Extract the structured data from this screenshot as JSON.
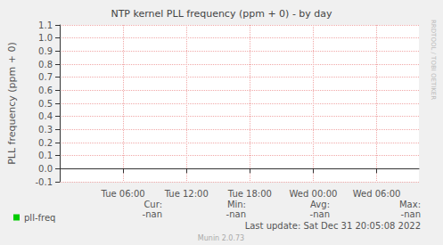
{
  "chart_data": {
    "type": "line",
    "title": "NTP kernel PLL frequency (ppm + 0) - by day",
    "y_label": "PLL frequency (ppm + 0)",
    "categories": [
      null,
      null,
      null,
      null,
      null,
      null,
      "Tue 06:00",
      null,
      null,
      null,
      null,
      null,
      "Tue 12:00",
      null,
      null,
      null,
      null,
      null,
      "Tue 18:00",
      null,
      null,
      null,
      null,
      null,
      "Wed 00:00",
      null,
      null,
      null,
      null,
      null,
      "Wed 06:00",
      null,
      null,
      null,
      null
    ],
    "series": [
      {
        "name": "pll-freq",
        "color": "#00cc00",
        "values": [
          null,
          null,
          null,
          null,
          null,
          null,
          null,
          null,
          null,
          null,
          null,
          null,
          null,
          null,
          null,
          null,
          null,
          null,
          null,
          null,
          null,
          null,
          null,
          null,
          null,
          null,
          null,
          null,
          null,
          null,
          null,
          null,
          null,
          null,
          null
        ],
        "stats": [
          "-nan",
          "-nan",
          "-nan",
          "-nan"
        ]
      }
    ],
    "stats_headers": [
      "Cur:",
      "Min:",
      "Avg:",
      "Max:"
    ],
    "ylim": [
      -0.1,
      1.1
    ],
    "yticks": [
      -0.1,
      {
        "value": 0,
        "label": "0.0"
      },
      0.1,
      0.2,
      0.3,
      0.4,
      0.5,
      0.6,
      0.7,
      0.8,
      0.9,
      {
        "value": 1,
        "label": "1.0"
      },
      1.1
    ],
    "grid": true,
    "legend": "bottom-left",
    "footer": "Last update: Sat Dec 31 20:05:08 2022",
    "credit": "Munin 2.0.73",
    "watermark": "RRDTOOL / TOBI OETIKER"
  }
}
